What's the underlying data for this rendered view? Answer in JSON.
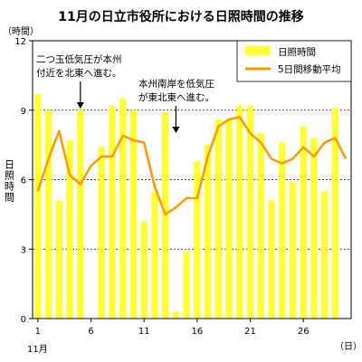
{
  "chart_data": {
    "type": "bar",
    "title": "11月の日立市役所における日照時間の推移",
    "y_unit": "（時間）",
    "ylabel": "日照時間",
    "x_unit": "（日）",
    "x_month": "11月",
    "ylim": [
      0,
      12
    ],
    "yticks": [
      "0",
      "3",
      "6",
      "9",
      "12"
    ],
    "xtick_days": [
      1,
      6,
      11,
      16,
      21,
      26
    ],
    "xtick_labels": [
      "1",
      "6",
      "11",
      "16",
      "21",
      "26"
    ],
    "grid": "horizontal dotted",
    "legend_position": "top-right",
    "x": [
      1,
      2,
      3,
      4,
      5,
      6,
      7,
      8,
      9,
      10,
      11,
      12,
      13,
      14,
      15,
      16,
      17,
      18,
      19,
      20,
      21,
      22,
      23,
      24,
      25,
      26,
      27,
      28,
      29,
      30
    ],
    "series": [
      {
        "name": "日照時間",
        "type": "bar",
        "color": "#ffff33",
        "values": [
          9.7,
          9.0,
          5.1,
          7.7,
          9.0,
          0.0,
          7.4,
          9.2,
          9.5,
          9.0,
          4.2,
          5.5,
          8.9,
          0.3,
          2.9,
          6.8,
          7.5,
          8.6,
          8.6,
          9.2,
          9.2,
          8.0,
          5.1,
          7.6,
          5.9,
          8.3,
          7.8,
          5.5,
          9.1,
          0.0
        ]
      },
      {
        "name": "5日間移動平均",
        "type": "line",
        "color": "#ff9900",
        "values": [
          5.5,
          6.9,
          8.1,
          6.2,
          5.8,
          6.6,
          7.0,
          7.0,
          7.9,
          7.7,
          7.6,
          5.7,
          4.5,
          4.8,
          5.2,
          5.2,
          7.0,
          8.3,
          8.6,
          8.7,
          8.0,
          7.6,
          6.9,
          6.7,
          6.9,
          7.4,
          7.0,
          7.6,
          7.8,
          6.9
        ]
      }
    ],
    "annotations": [
      {
        "id": "ann1",
        "day": 5,
        "lines": [
          "二つ玉低気圧が本州",
          "付近を北東へ進む。"
        ]
      },
      {
        "id": "ann2",
        "day": 14,
        "lines": [
          "本州南岸を低気圧",
          "が東北東へ進む。"
        ]
      }
    ]
  }
}
